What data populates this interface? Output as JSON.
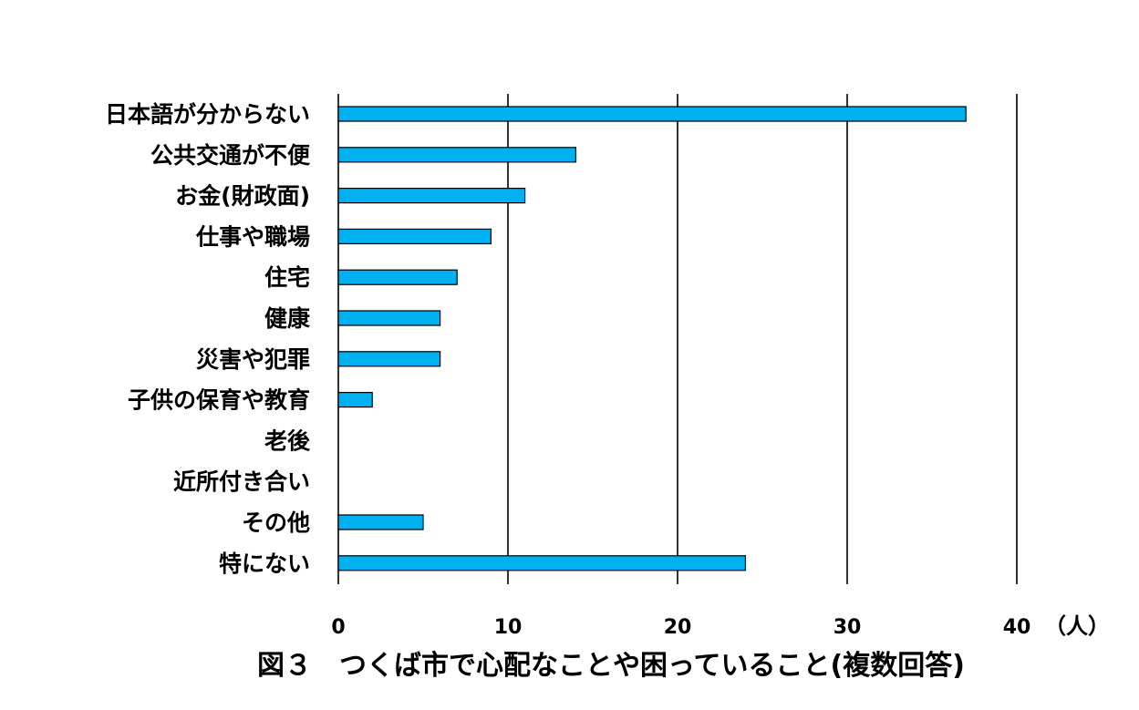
{
  "chart_data": {
    "type": "bar",
    "orientation": "horizontal",
    "title": "図３　つくば市で心配なことや困っていること(複数回答)",
    "unit": "（人）",
    "categories": [
      "日本語が分からない",
      "公共交通が不便",
      "お金(財政面)",
      "仕事や職場",
      "住宅",
      "健康",
      "災害や犯罪",
      "子供の保育や教育",
      "老後",
      "近所付き合い",
      "その他",
      "特にない"
    ],
    "values": [
      37,
      14,
      11,
      9,
      7,
      6,
      6,
      2,
      0,
      0,
      5,
      24
    ],
    "xlim": [
      0,
      40
    ],
    "xticks": [
      0,
      10,
      20,
      30,
      40
    ],
    "grid": "vertical",
    "legend": "none",
    "bar_color": "#00B0F0",
    "bar_edge_color": "#000000"
  }
}
